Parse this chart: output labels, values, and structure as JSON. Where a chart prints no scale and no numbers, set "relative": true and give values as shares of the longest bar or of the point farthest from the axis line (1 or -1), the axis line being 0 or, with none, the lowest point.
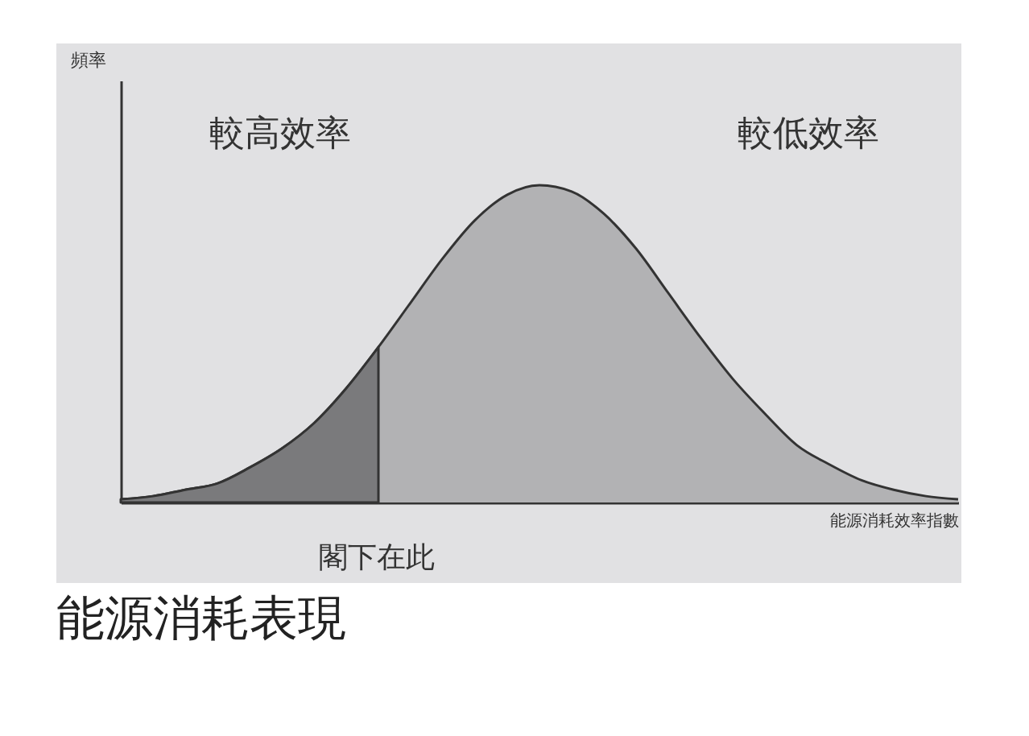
{
  "chart_data": {
    "type": "area",
    "title": "能源消耗表現",
    "xlabel": "能源消耗效率指數",
    "relative": true,
    "categories": [
      null,
      null,
      null,
      null,
      null,
      null,
      null,
      null,
      null,
      null,
      null,
      null,
      null,
      null,
      null,
      null,
      null,
      null,
      null,
      null,
      null,
      null,
      null,
      null,
      null,
      null,
      null
    ],
    "series": [
      {
        "color": "#b2b2b4",
        "values": [
          0.01,
          0.02,
          0.04,
          0.06,
          0.11,
          0.17,
          0.25,
          0.36,
          0.49,
          0.63,
          0.77,
          0.89,
          0.97,
          1.0,
          0.98,
          0.91,
          0.8,
          0.66,
          0.52,
          0.39,
          0.28,
          0.18,
          0.12,
          0.07,
          0.04,
          0.02,
          0.01
        ]
      },
      {
        "color": "#7a7a7c",
        "values": [
          0.01,
          0.02,
          0.04,
          0.06,
          0.11,
          0.17,
          0.25,
          0.36,
          0.49,
          null,
          null,
          null,
          null,
          null,
          null,
          null,
          null,
          null,
          null,
          null,
          null,
          null,
          null,
          null,
          null,
          null,
          null
        ]
      }
    ],
    "annotations": [
      "較高效率",
      "較低效率",
      "閣下在此",
      "頻率"
    ]
  }
}
